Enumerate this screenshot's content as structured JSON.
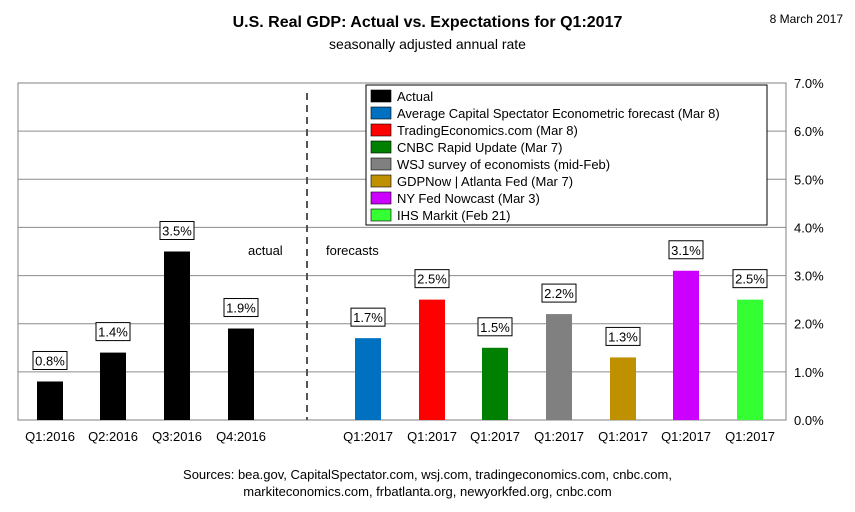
{
  "header": {
    "title": "U.S. Real GDP: Actual vs. Expectations for Q1:2017",
    "subtitle": "seasonally adjusted annual rate",
    "date": "8 March 2017"
  },
  "footer": {
    "sources_line1": "Sources: bea.gov, CapitalSpectator.com, wsj.com, tradingeconomics.com, cnbc.com,",
    "sources_line2": "markiteconomics.com,  frbatlanta.org, newyorkfed.org, cnbc.com"
  },
  "chart_data": {
    "type": "bar",
    "title": "U.S. Real GDP: Actual vs. Expectations for Q1:2017",
    "subtitle": "seasonally adjusted annual rate",
    "ylim": [
      0,
      7
    ],
    "yticks": [
      "0.0%",
      "1.0%",
      "2.0%",
      "3.0%",
      "4.0%",
      "5.0%",
      "6.0%",
      "7.0%"
    ],
    "grid": true,
    "legend_position": "top-right",
    "annotations": [
      "actual",
      "forecasts"
    ],
    "categories": [
      "Q1:2016",
      "Q2:2016",
      "Q3:2016",
      "Q4:2016",
      "Q1:2017",
      "Q1:2017",
      "Q1:2017",
      "Q1:2017",
      "Q1:2017",
      "Q1:2017",
      "Q1:2017"
    ],
    "bars": [
      {
        "category": "Q1:2016",
        "value": 0.8,
        "label": "0.8%",
        "series": "Actual"
      },
      {
        "category": "Q2:2016",
        "value": 1.4,
        "label": "1.4%",
        "series": "Actual"
      },
      {
        "category": "Q3:2016",
        "value": 3.5,
        "label": "3.5%",
        "series": "Actual"
      },
      {
        "category": "Q4:2016",
        "value": 1.9,
        "label": "1.9%",
        "series": "Actual"
      },
      {
        "category": "Q1:2017",
        "value": 1.7,
        "label": "1.7%",
        "series": "Average Capital Spectator Econometric forecast (Mar 8)"
      },
      {
        "category": "Q1:2017",
        "value": 2.5,
        "label": "2.5%",
        "series": "TradingEconomics.com (Mar 8)"
      },
      {
        "category": "Q1:2017",
        "value": 1.5,
        "label": "1.5%",
        "series": "CNBC Rapid Update (Mar 7)"
      },
      {
        "category": "Q1:2017",
        "value": 2.2,
        "label": "2.2%",
        "series": "WSJ survey of economists (mid-Feb)"
      },
      {
        "category": "Q1:2017",
        "value": 1.3,
        "label": "1.3%",
        "series": "GDPNow | Atlanta Fed (Mar 7)"
      },
      {
        "category": "Q1:2017",
        "value": 3.1,
        "label": "3.1%",
        "series": "NY Fed Nowcast (Mar 3)"
      },
      {
        "category": "Q1:2017",
        "value": 2.5,
        "label": "2.5%",
        "series": "IHS Markit (Feb 21)"
      }
    ],
    "series": [
      {
        "name": "Actual",
        "color": "#000000"
      },
      {
        "name": "Average Capital Spectator Econometric forecast (Mar 8)",
        "color": "#0070c0"
      },
      {
        "name": "TradingEconomics.com (Mar 8)",
        "color": "#ff0000"
      },
      {
        "name": "CNBC Rapid Update (Mar 7)",
        "color": "#008000"
      },
      {
        "name": "WSJ survey of economists (mid-Feb)",
        "color": "#808080"
      },
      {
        "name": "GDPNow | Atlanta Fed (Mar 7)",
        "color": "#bf9000"
      },
      {
        "name": "NY Fed Nowcast (Mar 3)",
        "color": "#cc00ff"
      },
      {
        "name": "IHS Markit (Feb 21)",
        "color": "#33ff33"
      }
    ]
  }
}
